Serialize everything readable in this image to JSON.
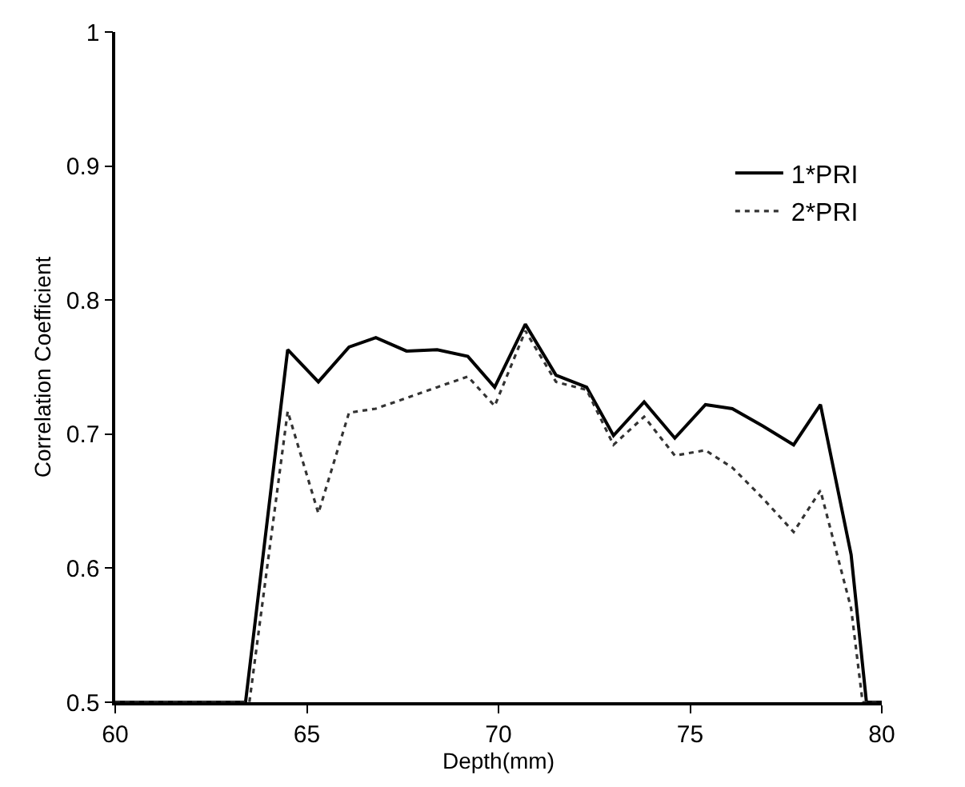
{
  "chart_data": {
    "type": "line",
    "xlabel": "Depth(mm)",
    "ylabel": "Correlation Coefficient",
    "xlim": [
      60,
      80
    ],
    "xticks": [
      60,
      65,
      70,
      75,
      80
    ],
    "ylim": [
      0.5,
      1
    ],
    "yticks": [
      0.5,
      0.6,
      0.7,
      0.8,
      0.9,
      1
    ],
    "legend": "top right",
    "marker": "none",
    "series": [
      {
        "name": "1*PRI",
        "color": "#000000",
        "line_style": "solid",
        "x": [
          60,
          63.4,
          64.5,
          65.3,
          66.1,
          66.8,
          67.6,
          68.4,
          69.2,
          69.9,
          70.7,
          71.5,
          72.3,
          73.0,
          73.8,
          74.6,
          75.4,
          76.1,
          76.9,
          77.7,
          78.4,
          79.2,
          79.6,
          80
        ],
        "values": [
          0.5,
          0.5,
          0.763,
          0.739,
          0.765,
          0.772,
          0.762,
          0.763,
          0.758,
          0.735,
          0.782,
          0.744,
          0.735,
          0.699,
          0.724,
          0.697,
          0.722,
          0.719,
          0.706,
          0.692,
          0.722,
          0.61,
          0.5,
          0.5
        ]
      },
      {
        "name": "2*PRI",
        "color": "#333333",
        "line_style": "dotted",
        "x": [
          60,
          63.5,
          64.5,
          65.3,
          66.1,
          66.8,
          67.6,
          68.4,
          69.2,
          69.9,
          70.7,
          71.5,
          72.3,
          73.0,
          73.8,
          74.6,
          75.4,
          76.1,
          76.9,
          77.7,
          78.4,
          79.2,
          79.5,
          80
        ],
        "values": [
          0.5,
          0.5,
          0.717,
          0.641,
          0.716,
          0.719,
          0.727,
          0.735,
          0.743,
          0.721,
          0.777,
          0.739,
          0.733,
          0.692,
          0.713,
          0.684,
          0.688,
          0.675,
          0.652,
          0.627,
          0.658,
          0.57,
          0.5,
          0.5
        ]
      }
    ]
  }
}
